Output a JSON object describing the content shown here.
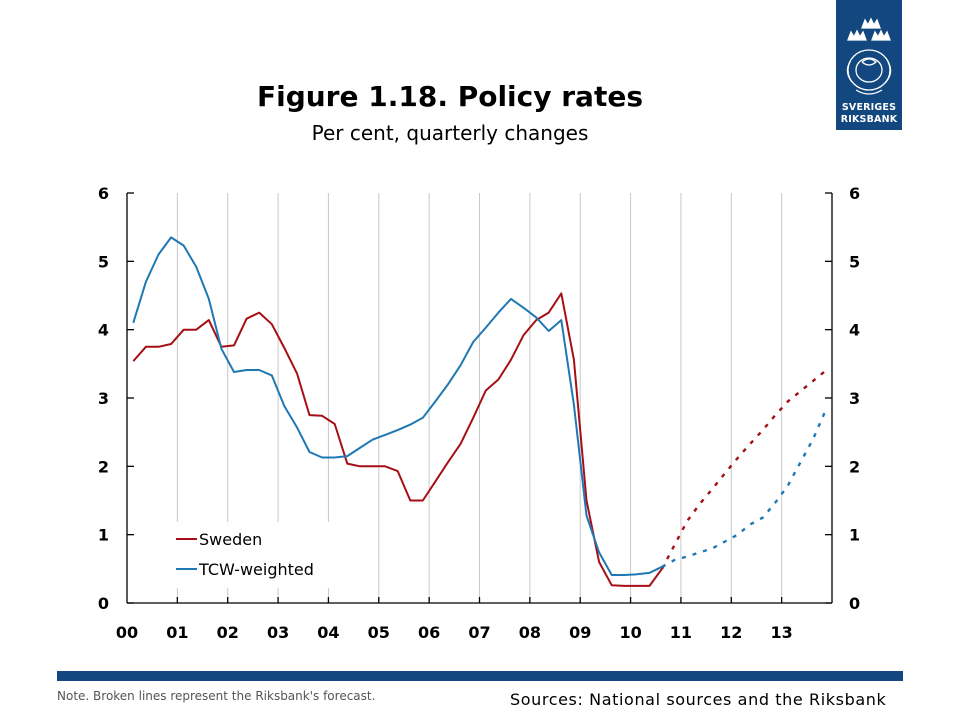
{
  "header": {
    "title": "Figure 1.18. Policy rates",
    "subtitle": "Per cent, quarterly changes"
  },
  "logo": {
    "line1": "SVERIGES",
    "line2": "RIKSBANK",
    "color": "#13477f"
  },
  "footer": {
    "note": "Note. Broken lines represent the Riksbank's forecast.",
    "sources": "Sources: National sources and the Riksbank"
  },
  "chart_data": {
    "type": "line",
    "title": "Figure 1.18. Policy rates",
    "subtitle": "Per cent, quarterly changes",
    "xlabel": "",
    "ylabel": "",
    "x_tick_labels": [
      "00",
      "01",
      "02",
      "03",
      "04",
      "05",
      "06",
      "07",
      "08",
      "09",
      "10",
      "11",
      "12",
      "13"
    ],
    "xlim": [
      0,
      14
    ],
    "ylim": [
      0,
      6
    ],
    "y_ticks": [
      0,
      1,
      2,
      3,
      4,
      5,
      6
    ],
    "y_tick_labels_left": [
      "0",
      "1",
      "2",
      "3",
      "4",
      "5",
      "6"
    ],
    "y_tick_labels_right": [
      "0",
      "1",
      "2",
      "3",
      "4",
      "5",
      "6"
    ],
    "grid": "vertical",
    "legend_position": "bottom-left",
    "series": [
      {
        "name": "Sweden",
        "color": "#a50f15",
        "x": [
          0.125,
          0.375,
          0.625,
          0.875,
          1.125,
          1.375,
          1.625,
          1.875,
          2.125,
          2.375,
          2.625,
          2.875,
          3.125,
          3.375,
          3.625,
          3.875,
          4.125,
          4.375,
          4.625,
          4.875,
          5.125,
          5.375,
          5.625,
          5.875,
          6.125,
          6.375,
          6.625,
          6.875,
          7.125,
          7.375,
          7.625,
          7.875,
          8.125,
          8.375,
          8.625,
          8.875,
          9.125,
          9.375,
          9.625,
          9.875,
          10.125,
          10.375,
          10.625
        ],
        "values": [
          3.54,
          3.75,
          3.75,
          3.79,
          4.0,
          4.0,
          4.14,
          3.75,
          3.77,
          4.16,
          4.25,
          4.08,
          3.73,
          3.36,
          2.75,
          2.74,
          2.62,
          2.04,
          2.0,
          2.0,
          2.0,
          1.93,
          1.5,
          1.5,
          1.78,
          2.06,
          2.33,
          2.71,
          3.11,
          3.27,
          3.56,
          3.92,
          4.14,
          4.25,
          4.53,
          3.56,
          1.5,
          0.6,
          0.26,
          0.25,
          0.25,
          0.25,
          0.5
        ],
        "forecast_x": [
          10.625,
          10.875,
          11.125,
          11.375,
          11.625,
          11.875,
          12.125,
          12.375,
          12.625,
          12.875,
          13.125,
          13.375,
          13.625,
          13.875
        ],
        "forecast_values": [
          0.5,
          0.85,
          1.2,
          1.45,
          1.67,
          1.9,
          2.12,
          2.33,
          2.53,
          2.75,
          2.95,
          3.1,
          3.25,
          3.4
        ]
      },
      {
        "name": "TCW-weighted",
        "color": "#1f78b4",
        "x": [
          0.125,
          0.375,
          0.625,
          0.875,
          1.125,
          1.375,
          1.625,
          1.875,
          2.125,
          2.375,
          2.625,
          2.875,
          3.125,
          3.375,
          3.625,
          3.875,
          4.125,
          4.375,
          4.625,
          4.875,
          5.125,
          5.375,
          5.625,
          5.875,
          6.125,
          6.375,
          6.625,
          6.875,
          7.125,
          7.375,
          7.625,
          7.875,
          8.125,
          8.375,
          8.625,
          8.875,
          9.125,
          9.375,
          9.625,
          9.875,
          10.125,
          10.375,
          10.625
        ],
        "values": [
          4.1,
          4.7,
          5.1,
          5.35,
          5.23,
          4.92,
          4.45,
          3.72,
          3.38,
          3.41,
          3.41,
          3.33,
          2.88,
          2.57,
          2.21,
          2.13,
          2.13,
          2.15,
          2.27,
          2.39,
          2.46,
          2.53,
          2.61,
          2.71,
          2.95,
          3.2,
          3.48,
          3.82,
          4.03,
          4.25,
          4.45,
          4.32,
          4.18,
          3.98,
          4.14,
          2.9,
          1.28,
          0.74,
          0.41,
          0.41,
          0.42,
          0.44,
          0.53
        ],
        "forecast_x": [
          10.625,
          10.875,
          11.125,
          11.375,
          11.625,
          11.875,
          12.125,
          12.375,
          12.625,
          12.875,
          13.125,
          13.375,
          13.625,
          13.875
        ],
        "forecast_values": [
          0.53,
          0.63,
          0.68,
          0.74,
          0.8,
          0.9,
          1.0,
          1.15,
          1.25,
          1.47,
          1.72,
          2.06,
          2.4,
          2.82
        ]
      }
    ]
  }
}
